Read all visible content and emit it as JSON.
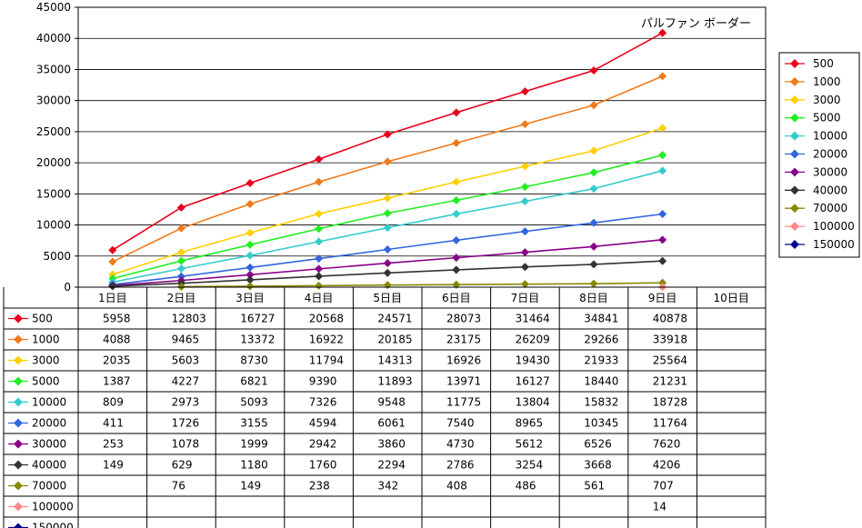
{
  "chart_data": {
    "type": "line",
    "title": "パルファン ボーダー",
    "xlabel": "",
    "ylabel": "",
    "ylim": [
      0,
      45000
    ],
    "yticks": [
      "0",
      "5000",
      "10000",
      "15000",
      "20000",
      "25000",
      "30000",
      "35000",
      "40000",
      "45000"
    ],
    "grid": true,
    "legend": "right",
    "categories": [
      "1日目",
      "2日目",
      "3日目",
      "4日目",
      "5日目",
      "6日目",
      "7日目",
      "8日目",
      "9日目",
      "10日目"
    ],
    "series": [
      {
        "name": "500",
        "color": "#e8001c",
        "values": [
          5958,
          12803,
          16727,
          20568,
          24571,
          28073,
          31464,
          34841,
          40878,
          null
        ]
      },
      {
        "name": "1000",
        "color": "#f07a1a",
        "values": [
          4088,
          9465,
          13372,
          16922,
          20185,
          23175,
          26209,
          29266,
          33918,
          null
        ]
      },
      {
        "name": "3000",
        "color": "#ffd000",
        "values": [
          2035,
          5603,
          8730,
          11794,
          14313,
          16926,
          19430,
          21933,
          25564,
          null
        ]
      },
      {
        "name": "5000",
        "color": "#22ee22",
        "values": [
          1387,
          4227,
          6821,
          9390,
          11893,
          13971,
          16127,
          18440,
          21231,
          null
        ]
      },
      {
        "name": "10000",
        "color": "#33cccc",
        "values": [
          809,
          2973,
          5093,
          7326,
          9548,
          11775,
          13804,
          15832,
          18728,
          null
        ]
      },
      {
        "name": "20000",
        "color": "#3366dd",
        "values": [
          411,
          1726,
          3155,
          4594,
          6061,
          7540,
          8965,
          10345,
          11764,
          null
        ]
      },
      {
        "name": "30000",
        "color": "#880088",
        "values": [
          253,
          1078,
          1999,
          2942,
          3860,
          4730,
          5612,
          6526,
          7620,
          null
        ]
      },
      {
        "name": "40000",
        "color": "#333333",
        "values": [
          149,
          629,
          1180,
          1760,
          2294,
          2786,
          3254,
          3668,
          4206,
          null
        ]
      },
      {
        "name": "70000",
        "color": "#888800",
        "values": [
          null,
          76,
          149,
          238,
          342,
          408,
          486,
          561,
          707,
          null
        ]
      },
      {
        "name": "100000",
        "color": "#ff8888",
        "values": [
          null,
          null,
          null,
          null,
          null,
          null,
          null,
          null,
          14,
          null
        ]
      },
      {
        "name": "150000",
        "color": "#000088",
        "values": [
          null,
          null,
          null,
          null,
          null,
          null,
          null,
          null,
          null,
          null
        ]
      }
    ],
    "table": [
      [
        "5958",
        "12803",
        "16727",
        "20568",
        "24571",
        "28073",
        "31464",
        "34841",
        "40878",
        ""
      ],
      [
        "4088",
        "9465",
        "13372",
        "16922",
        "20185",
        "23175",
        "26209",
        "29266",
        "33918",
        ""
      ],
      [
        "2035",
        "5603",
        "8730",
        "11794",
        "14313",
        "16926",
        "19430",
        "21933",
        "25564",
        ""
      ],
      [
        "1387",
        "4227",
        "6821",
        "9390",
        "11893",
        "13971",
        "16127",
        "18440",
        "21231",
        ""
      ],
      [
        "809",
        "2973",
        "5093",
        "7326",
        "9548",
        "11775",
        "13804",
        "15832",
        "18728",
        ""
      ],
      [
        "411",
        "1726",
        "3155",
        "4594",
        "6061",
        "7540",
        "8965",
        "10345",
        "11764",
        ""
      ],
      [
        "253",
        "1078",
        "1999",
        "2942",
        "3860",
        "4730",
        "5612",
        "6526",
        "7620",
        ""
      ],
      [
        "149",
        "629",
        "1180",
        "1760",
        "2294",
        "2786",
        "3254",
        "3668",
        "4206",
        ""
      ],
      [
        "",
        "76",
        "149",
        "238",
        "342",
        "408",
        "486",
        "561",
        "707",
        ""
      ],
      [
        "",
        "",
        "",
        "",
        "",
        "",
        "",
        "",
        "14",
        ""
      ],
      [
        "",
        "",
        "",
        "",
        "",
        "",
        "",
        "",
        "",
        ""
      ]
    ]
  }
}
